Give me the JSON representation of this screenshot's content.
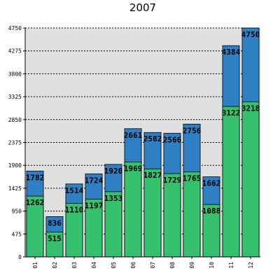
{
  "chart_data": {
    "type": "bar",
    "stacking": "overlay",
    "title": "2007",
    "xlabel": "",
    "ylabel": "",
    "categories": [
      "01",
      "02",
      "03",
      "04",
      "05",
      "06",
      "07",
      "08",
      "09",
      "10",
      "11",
      "12"
    ],
    "series": [
      {
        "values": [
          1782,
          836,
          1514,
          1724,
          1920,
          2661,
          2582,
          2566,
          2756,
          1662,
          4384,
          4750
        ],
        "color": "#2e7fc4"
      },
      {
        "values": [
          1262,
          515,
          1110,
          1197,
          1353,
          1969,
          1827,
          1729,
          1765,
          1088,
          3122,
          3218
        ],
        "color": "#35c06e"
      }
    ],
    "ylim": [
      0,
      4750
    ],
    "yticks": [
      "0",
      "475",
      "950",
      "1425",
      "1900",
      "2375",
      "2850",
      "3325",
      "3800",
      "4275",
      "4750"
    ],
    "grid": true,
    "legend": "none",
    "plot_background": "#e0e0e0"
  }
}
